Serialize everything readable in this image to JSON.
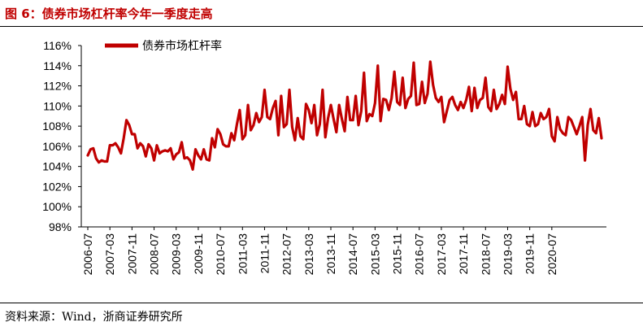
{
  "figure": {
    "title": "图 6：债券市场杠杆率今年一季度走高",
    "source": "资料来源：Wind，浙商证券研究所"
  },
  "chart_data": {
    "type": "line",
    "title": "",
    "xlabel": "",
    "ylabel": "",
    "ylim": [
      98,
      116
    ],
    "yticks": [
      "98%",
      "100%",
      "102%",
      "104%",
      "106%",
      "108%",
      "110%",
      "112%",
      "114%",
      "116%"
    ],
    "xticks": [
      "2006-07",
      "2007-03",
      "2007-11",
      "2008-07",
      "2009-03",
      "2009-11",
      "2010-07",
      "2011-03",
      "2011-11",
      "2012-07",
      "2013-03",
      "2013-11",
      "2014-07",
      "2015-03",
      "2015-11",
      "2016-07",
      "2017-03",
      "2017-11",
      "2018-07",
      "2019-03",
      "2019-11",
      "2020-07"
    ],
    "grid": false,
    "legend_position": "top-left",
    "line_color": "#c00000",
    "series": [
      {
        "name": "债券市场杠杆率",
        "start": "2006-07",
        "frequency": "monthly",
        "values": [
          105.1,
          105.7,
          105.8,
          104.8,
          104.4,
          104.6,
          104.5,
          104.5,
          106.1,
          106.1,
          106.3,
          105.9,
          105.3,
          106.8,
          108.6,
          108.1,
          107.2,
          107.2,
          105.8,
          106.3,
          106.0,
          105.0,
          106.2,
          105.8,
          104.6,
          106.1,
          105.3,
          105.5,
          105.6,
          105.5,
          105.8,
          104.7,
          105.2,
          105.4,
          106.4,
          104.8,
          104.9,
          104.6,
          103.7,
          105.7,
          105.1,
          104.7,
          105.7,
          104.7,
          104.6,
          106.8,
          105.9,
          107.7,
          107.2,
          106.2,
          106.0,
          106.0,
          107.3,
          106.6,
          108.2,
          109.6,
          106.7,
          107.1,
          110.1,
          107.6,
          108.1,
          109.3,
          108.4,
          108.9,
          111.6,
          108.9,
          108.7,
          109.8,
          110.5,
          107.1,
          111.0,
          107.9,
          108.2,
          111.6,
          107.9,
          106.6,
          108.8,
          107.0,
          106.7,
          110.2,
          109.6,
          108.3,
          110.1,
          107.1,
          108.2,
          111.6,
          106.9,
          108.8,
          110.1,
          108.7,
          107.4,
          110.1,
          108.7,
          107.5,
          110.9,
          108.6,
          108.6,
          111.0,
          108.1,
          109.5,
          113.3,
          108.5,
          109.2,
          109.0,
          110.3,
          114.0,
          108.5,
          110.7,
          110.6,
          109.6,
          110.8,
          113.4,
          110.4,
          110.1,
          112.8,
          109.8,
          110.7,
          111.0,
          114.3,
          110.1,
          110.2,
          112.4,
          110.3,
          111.2,
          114.4,
          112.1,
          110.8,
          110.4,
          110.9,
          108.4,
          109.5,
          110.6,
          110.9,
          110.1,
          109.6,
          110.4,
          109.8,
          110.6,
          111.9,
          109.5,
          111.8,
          109.8,
          110.6,
          110.8,
          112.8,
          109.9,
          109.5,
          111.6,
          109.7,
          110.2,
          111.1,
          110.2,
          113.9,
          111.7,
          110.6,
          111.4,
          108.7,
          108.7,
          110.0,
          108.2,
          108.0,
          109.4,
          108.0,
          108.2,
          109.3,
          108.7,
          108.9,
          109.7,
          107.0,
          106.5,
          108.9,
          107.7,
          107.3,
          107.1,
          108.9,
          108.6,
          107.9,
          107.2,
          108.0,
          108.9,
          104.6,
          108.1,
          109.7,
          107.6,
          107.3,
          108.8,
          106.8
        ]
      }
    ]
  }
}
